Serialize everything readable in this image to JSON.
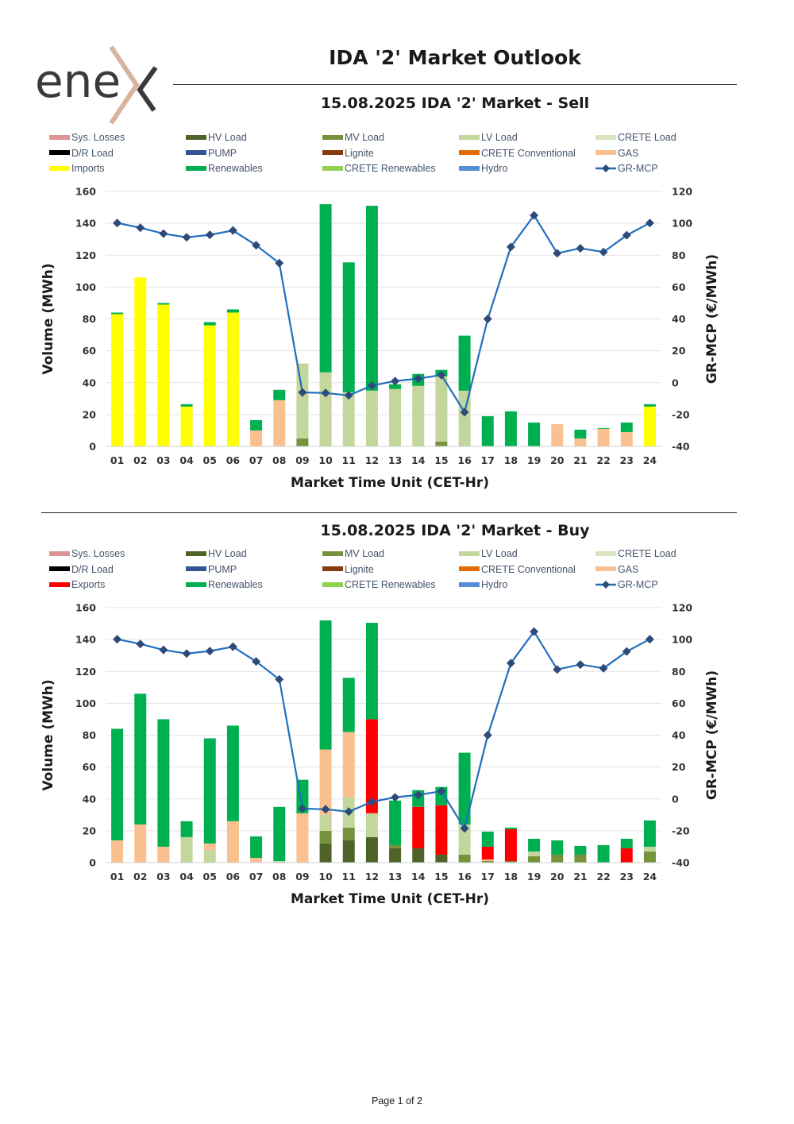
{
  "logo": {
    "text": "ene",
    "x_mark_color": "#d7b49e"
  },
  "page_title": "IDA '2' Market Outlook",
  "footer": "Page 1 of 2",
  "colors": {
    "Sys. Losses": "#d99694",
    "HV Load": "#4f6228",
    "MV Load": "#76923c",
    "LV Load": "#c3d69b",
    "CRETE Load": "#d7e4bd",
    "D/R Load": "#000000",
    "PUMP": "#2f5597",
    "Lignite": "#843c0c",
    "CRETE Conventional": "#e36c09",
    "GAS": "#fac090",
    "Imports": "#ffff00",
    "Exports": "#ff0000",
    "Renewables": "#00b050",
    "CRETE Renewables": "#92d050",
    "Hydro": "#558ed5",
    "GR-MCP": "#1f6fbf"
  },
  "charts": [
    {
      "title": "15.08.2025  IDA '2' Market - Sell",
      "legend": [
        "Sys. Losses",
        "HV Load",
        "MV Load",
        "LV Load",
        "CRETE Load",
        "D/R Load",
        "PUMP",
        "Lignite",
        "CRETE Conventional",
        "GAS",
        "Imports",
        "Renewables",
        "CRETE Renewables",
        "Hydro",
        "GR-MCP"
      ],
      "ylabel": "Volume (MWh)",
      "y2label": "GR-MCP (€/MWh)",
      "xlabel": "Market Time Unit (CET-Hr)"
    },
    {
      "title": "15.08.2025  IDA '2' Market - Buy",
      "legend": [
        "Sys. Losses",
        "HV Load",
        "MV Load",
        "LV Load",
        "CRETE Load",
        "D/R Load",
        "PUMP",
        "Lignite",
        "CRETE Conventional",
        "GAS",
        "Exports",
        "Renewables",
        "CRETE Renewables",
        "Hydro",
        "GR-MCP"
      ],
      "ylabel": "Volume (MWh)",
      "y2label": "GR-MCP (€/MWh)",
      "xlabel": "Market Time Unit (CET-Hr)"
    }
  ],
  "chart_data": [
    {
      "type": "bar",
      "stacked": true,
      "title": "15.08.2025  IDA '2' Market - Sell",
      "xlabel": "Market Time Unit (CET-Hr)",
      "ylabel": "Volume (MWh)",
      "y2label": "GR-MCP (€/MWh)",
      "ylim": [
        0,
        160
      ],
      "y2lim": [
        -40,
        120
      ],
      "yticks": [
        0,
        20,
        40,
        60,
        80,
        100,
        120,
        140,
        160
      ],
      "y2ticks": [
        -40,
        -20,
        0,
        20,
        40,
        60,
        80,
        100,
        120
      ],
      "categories": [
        "01",
        "02",
        "03",
        "04",
        "05",
        "06",
        "07",
        "08",
        "09",
        "10",
        "11",
        "12",
        "13",
        "14",
        "15",
        "16",
        "17",
        "18",
        "19",
        "20",
        "21",
        "22",
        "23",
        "24"
      ],
      "series": [
        {
          "name": "MV Load",
          "values": [
            0,
            0,
            0,
            0,
            0,
            0,
            0,
            0,
            5,
            0,
            0,
            0,
            0,
            0,
            3,
            0,
            0,
            0,
            0,
            0,
            0,
            0,
            0,
            0
          ]
        },
        {
          "name": "LV Load",
          "values": [
            0,
            0,
            0,
            0,
            0,
            0,
            0,
            0,
            47,
            46.5,
            34,
            35,
            36,
            38,
            41,
            35,
            0,
            0,
            0,
            0,
            0,
            0,
            0,
            0
          ]
        },
        {
          "name": "GAS",
          "values": [
            0,
            0,
            0,
            0,
            0,
            0,
            10,
            29,
            0,
            0,
            0,
            0,
            0,
            0,
            0,
            0,
            0,
            0,
            0,
            14,
            5,
            11,
            9,
            0
          ]
        },
        {
          "name": "Imports",
          "values": [
            83,
            106,
            89,
            25,
            76,
            84,
            0,
            0,
            0,
            0,
            0,
            0,
            0,
            0,
            0,
            0,
            0,
            0,
            0,
            0,
            0,
            0,
            0,
            25
          ]
        },
        {
          "name": "Renewables",
          "values": [
            1,
            0,
            1,
            1.5,
            2,
            2,
            6.5,
            6.5,
            0,
            105.5,
            81.5,
            116,
            3,
            7.5,
            4,
            34.5,
            19,
            22,
            15,
            0,
            5.5,
            0.5,
            6,
            1.5
          ]
        }
      ],
      "line": {
        "name": "GR-MCP",
        "values": [
          100.2,
          97.2,
          93.5,
          91.2,
          92.8,
          95.5,
          86.2,
          75,
          -6.1,
          -6.5,
          -8,
          -1.8,
          1,
          2.5,
          4.8,
          -18.5,
          40,
          85.2,
          105,
          81.2,
          84.3,
          82,
          92.5,
          100.2
        ]
      }
    },
    {
      "type": "bar",
      "stacked": true,
      "title": "15.08.2025  IDA '2' Market - Buy",
      "xlabel": "Market Time Unit (CET-Hr)",
      "ylabel": "Volume (MWh)",
      "y2label": "GR-MCP (€/MWh)",
      "ylim": [
        0,
        160
      ],
      "y2lim": [
        -40,
        120
      ],
      "yticks": [
        0,
        20,
        40,
        60,
        80,
        100,
        120,
        140,
        160
      ],
      "y2ticks": [
        -40,
        -20,
        0,
        20,
        40,
        60,
        80,
        100,
        120
      ],
      "categories": [
        "01",
        "02",
        "03",
        "04",
        "05",
        "06",
        "07",
        "08",
        "09",
        "10",
        "11",
        "12",
        "13",
        "14",
        "15",
        "16",
        "17",
        "18",
        "19",
        "20",
        "21",
        "22",
        "23",
        "24"
      ],
      "series": [
        {
          "name": "HV Load",
          "values": [
            0,
            0,
            0,
            0,
            0,
            0,
            0,
            0,
            0,
            12,
            14,
            16,
            9,
            9,
            5,
            0,
            0,
            0,
            0,
            0,
            0,
            0,
            0,
            0
          ]
        },
        {
          "name": "MV Load",
          "values": [
            0,
            0,
            0,
            0,
            0,
            0,
            0,
            0,
            0,
            8,
            8,
            0,
            2,
            0,
            0,
            5,
            1,
            1,
            4,
            5,
            5,
            0,
            0,
            7
          ]
        },
        {
          "name": "LV Load",
          "values": [
            0,
            0,
            0,
            16,
            8,
            0,
            0,
            1,
            0,
            10,
            19,
            15,
            0,
            0,
            0,
            19,
            0,
            0,
            3,
            0,
            0,
            0,
            0,
            3
          ]
        },
        {
          "name": "GAS",
          "values": [
            14,
            24,
            10,
            0,
            4,
            26,
            3,
            0,
            31,
            41,
            41,
            0,
            0,
            0,
            0,
            0,
            1,
            0,
            0,
            0,
            0,
            0,
            0,
            0
          ]
        },
        {
          "name": "Exports",
          "values": [
            0,
            0,
            0,
            0,
            0,
            0,
            0,
            0,
            0,
            0,
            0,
            59,
            0,
            26,
            31,
            0,
            8,
            20,
            0,
            0,
            0,
            0,
            9,
            0
          ]
        },
        {
          "name": "Renewables",
          "values": [
            70,
            82,
            80,
            10,
            66,
            60,
            13.5,
            34,
            21,
            81,
            34,
            60.5,
            28,
            10.5,
            11.5,
            45,
            9.5,
            1,
            8,
            9,
            5.5,
            11,
            6,
            16.5
          ]
        }
      ],
      "line": {
        "name": "GR-MCP",
        "values": [
          100.2,
          97.2,
          93.5,
          91.2,
          92.8,
          95.5,
          86.2,
          75,
          -6.1,
          -6.5,
          -8,
          -1.8,
          1,
          2.5,
          4.8,
          -18.5,
          40,
          85.2,
          105,
          81.2,
          84.3,
          82,
          92.5,
          100.2
        ]
      }
    }
  ]
}
